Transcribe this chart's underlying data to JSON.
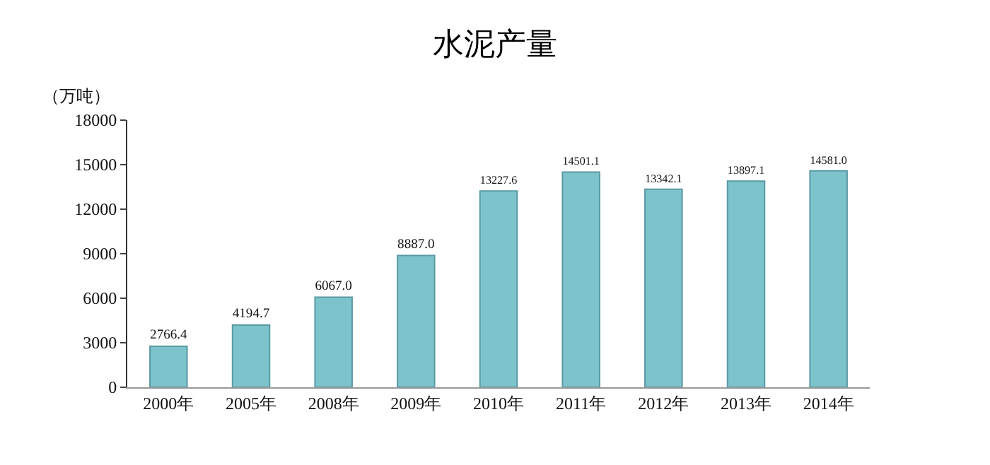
{
  "chart_data": {
    "type": "bar",
    "title": "水泥产量",
    "ylabel": "（万吨）",
    "categories": [
      "2000年",
      "2005年",
      "2008年",
      "2009年",
      "2010年",
      "2011年",
      "2012年",
      "2013年",
      "2014年"
    ],
    "values": [
      2766.4,
      4194.7,
      6067.0,
      8887.0,
      13227.6,
      14501.1,
      13342.1,
      13897.1,
      14581.0
    ],
    "value_labels": [
      "2766.4",
      "4194.7",
      "6067.0",
      "8887.0",
      "13227.6",
      "14501.1",
      "13342.1",
      "13897.1",
      "14581.0"
    ],
    "color": "#7dc3cc",
    "ylim": [
      0,
      18000
    ],
    "yticks": [
      0,
      3000,
      6000,
      9000,
      12000,
      15000,
      18000
    ],
    "grid": false,
    "legend": false
  }
}
